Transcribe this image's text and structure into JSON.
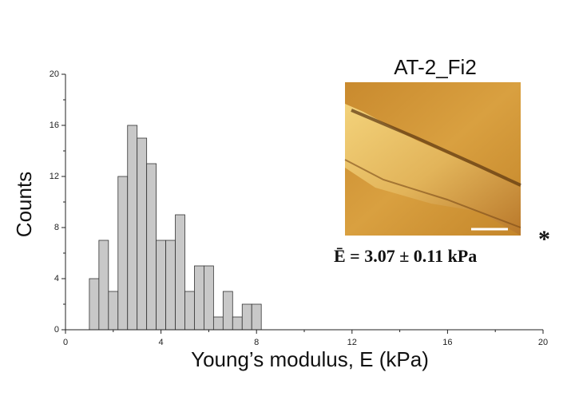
{
  "chart_data": {
    "type": "histogram",
    "xlabel": "Young’s modulus, E (kPa)",
    "ylabel": "Counts",
    "inset_title": "AT-2_Fi2",
    "annotation": "Ē = 3.07 ± 0.11 kPa",
    "annotation_mark": "*",
    "bins": [
      1.0,
      1.4,
      1.8,
      2.2,
      2.6,
      3.0,
      3.4,
      3.8,
      4.2,
      4.6,
      5.0,
      5.4,
      5.8,
      6.2,
      6.6,
      7.0,
      7.4,
      7.8,
      8.2
    ],
    "values": [
      4,
      7,
      3,
      12,
      16,
      15,
      13,
      7,
      7,
      9,
      3,
      5,
      5,
      1,
      3,
      1,
      2,
      2
    ],
    "color": "#c8c8c8",
    "xlim": [
      0,
      20
    ],
    "xticks": [
      0,
      4,
      8,
      12,
      16,
      20
    ],
    "ylim": [
      0,
      20
    ],
    "yticks": [
      0,
      4,
      8,
      12,
      16,
      20
    ]
  }
}
